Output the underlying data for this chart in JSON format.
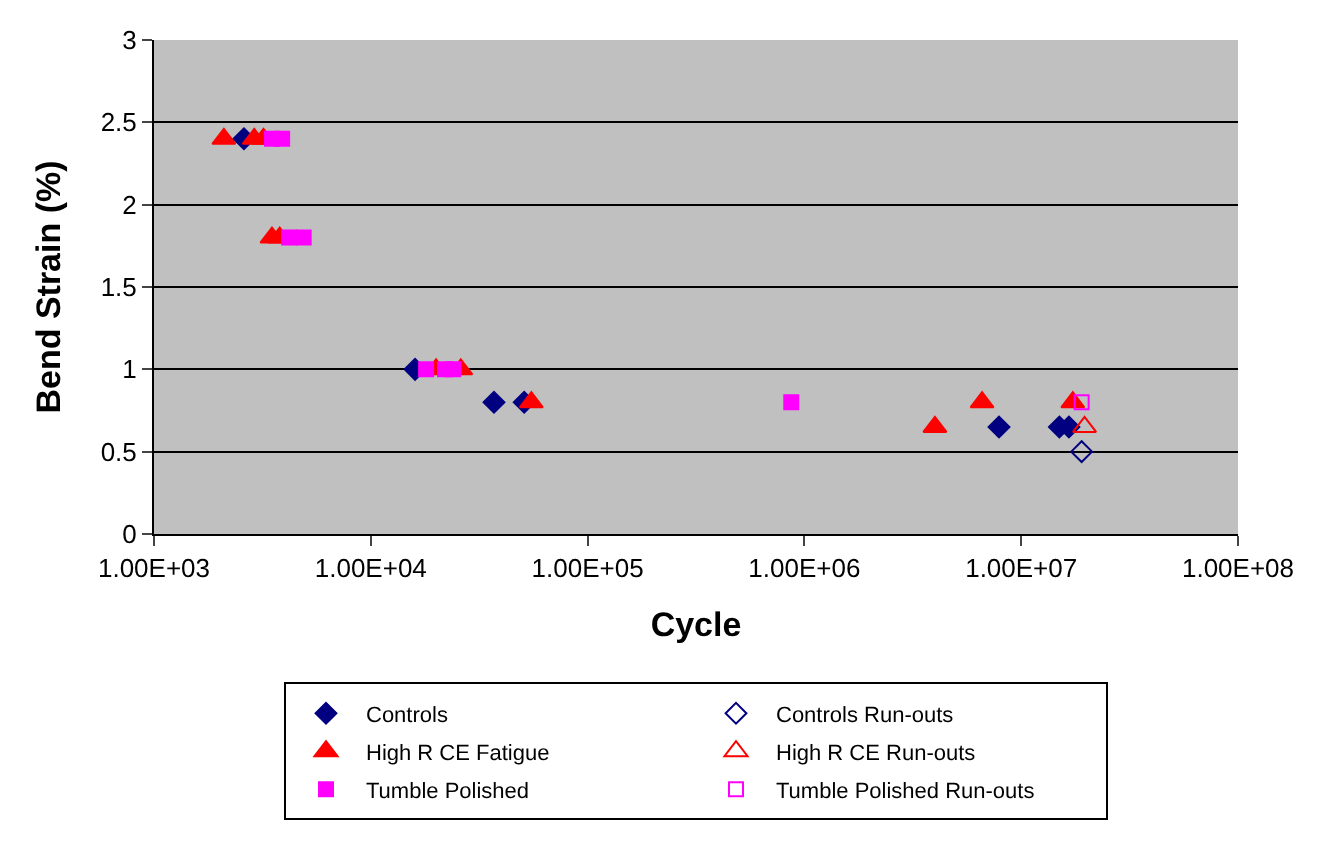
{
  "chart_data": {
    "type": "scatter",
    "xlabel": "Cycle",
    "ylabel": "Bend Strain (%)",
    "log": "x",
    "xlim": [
      1000,
      100000000
    ],
    "xticks": [
      {
        "value": 1000,
        "label": "1.00E+03"
      },
      {
        "value": 10000,
        "label": "1.00E+04"
      },
      {
        "value": 100000,
        "label": "1.00E+05"
      },
      {
        "value": 1000000,
        "label": "1.00E+06"
      },
      {
        "value": 10000000,
        "label": "1.00E+07"
      },
      {
        "value": 100000000,
        "label": "1.00E+08"
      }
    ],
    "ylim": [
      0,
      3
    ],
    "yticks": [
      0,
      0.5,
      1,
      1.5,
      2,
      2.5,
      3
    ],
    "grid": "y",
    "legend": "bottom",
    "series": [
      {
        "name": "Controls",
        "color": "#000080",
        "marker": "diamond",
        "x": [
          2600,
          16000,
          37000,
          51000,
          7900000,
          15000000,
          16600000
        ],
        "values": [
          2.4,
          1.0,
          0.8,
          0.8,
          0.65,
          0.65,
          0.65
        ]
      },
      {
        "name": "Controls Run-outs",
        "color": "#000080",
        "marker": "diamond-open",
        "x": [
          19000000
        ],
        "values": [
          0.5
        ]
      },
      {
        "name": "High R CE Fatigue",
        "color": "#ff0000",
        "marker": "triangle",
        "x": [
          2100,
          2900,
          3200,
          3500,
          3800,
          20000,
          26000,
          55000,
          4000000,
          6600000,
          17300000
        ],
        "values": [
          2.4,
          2.4,
          2.4,
          1.8,
          1.8,
          1.0,
          1.0,
          0.8,
          0.65,
          0.8,
          0.8
        ]
      },
      {
        "name": "High R CE Run-outs",
        "color": "#ff0000",
        "marker": "triangle-open",
        "x": [
          19600000
        ],
        "values": [
          0.65
        ]
      },
      {
        "name": "Tumble Polished",
        "color": "#ff00ff",
        "marker": "square",
        "x": [
          3500,
          3900,
          4200,
          4900,
          18000,
          22000,
          24000,
          870000
        ],
        "values": [
          2.4,
          2.4,
          1.8,
          1.8,
          1.0,
          1.0,
          1.0,
          0.8
        ]
      },
      {
        "name": "Tumble Polished Run-outs",
        "color": "#ff00ff",
        "marker": "square-open",
        "x": [
          19000000
        ],
        "values": [
          0.8
        ]
      }
    ]
  }
}
